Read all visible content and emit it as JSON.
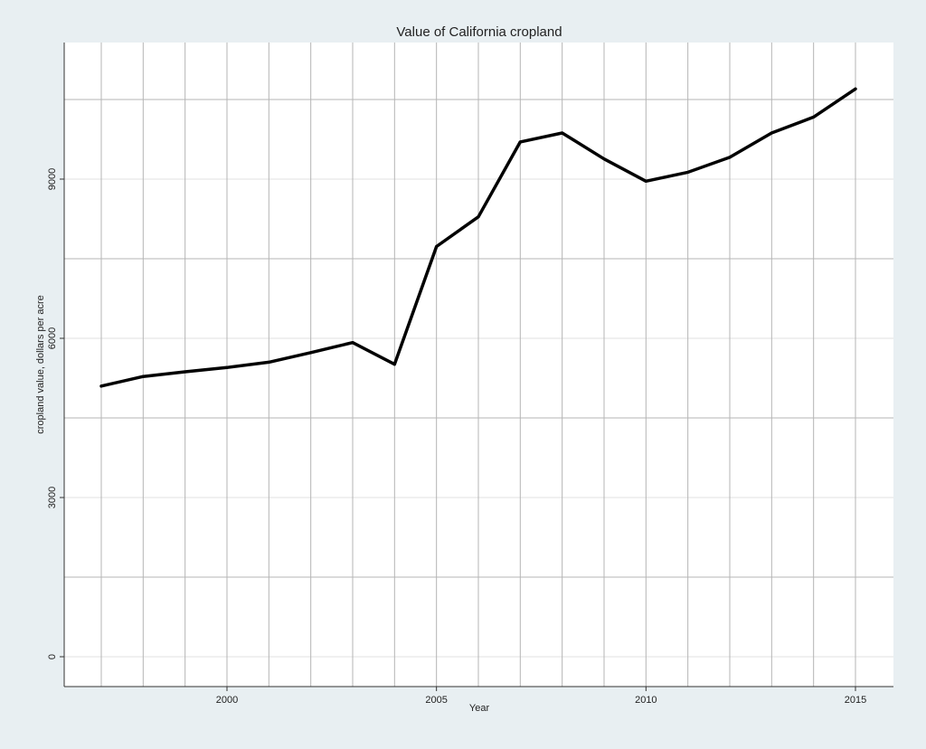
{
  "chart_data": {
    "type": "line",
    "title": "Value of California cropland",
    "xlabel": "Year",
    "ylabel": "cropland value, dollars per acre",
    "xlim": [
      1996,
      2016
    ],
    "ylim": [
      -500,
      11500
    ],
    "x_ticks": [
      2000,
      2005,
      2010,
      2015
    ],
    "y_ticks": [
      0,
      3000,
      6000,
      9000
    ],
    "x_grid": [
      1997,
      1998,
      1999,
      2000,
      2001,
      2002,
      2003,
      2004,
      2005,
      2006,
      2007,
      2008,
      2009,
      2010,
      2011,
      2012,
      2013,
      2014,
      2015
    ],
    "y_grid": [
      0,
      1500,
      3000,
      4500,
      6000,
      7500,
      9000,
      10500
    ],
    "grid": true,
    "legend": "none",
    "colors": {
      "background": "#e8eff2",
      "plot_area": "#ffffff",
      "grid": "#b5b5b5",
      "grid_minor": "#e0e0e0",
      "line": "#000000",
      "axis": "#333333"
    },
    "series": [
      {
        "x": [
          1997,
          1998,
          1999,
          2000,
          2001,
          2002,
          2003,
          2004,
          2005,
          2006,
          2007,
          2008,
          2009,
          2010,
          2011,
          2012,
          2013,
          2014,
          2015
        ],
        "values": [
          5100,
          5280,
          5370,
          5450,
          5550,
          5730,
          5920,
          5510,
          7730,
          8290,
          9700,
          9870,
          9380,
          8960,
          9130,
          9410,
          9870,
          10170,
          10700
        ]
      }
    ]
  }
}
